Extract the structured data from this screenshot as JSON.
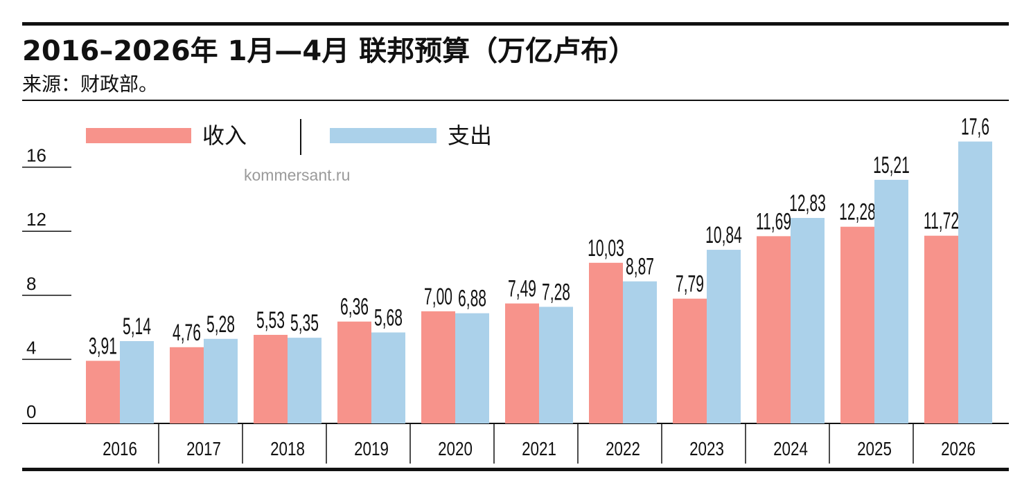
{
  "header": {
    "title": "2016–2026年 1月—4月 联邦预算（万亿卢布）",
    "source": "来源：财政部。"
  },
  "watermark": "kommersant.ru",
  "legend": [
    {
      "label": "收入",
      "color": "#f7938b"
    },
    {
      "label": "支出",
      "color": "#abd1ea"
    }
  ],
  "chart_data": {
    "type": "bar",
    "title": "2016–2026年 1月—4月 联邦预算（万亿卢布）",
    "categories": [
      "2016",
      "2017",
      "2018",
      "2019",
      "2020",
      "2021",
      "2022",
      "2023",
      "2024",
      "2025",
      "2026"
    ],
    "series": [
      {
        "name": "收入",
        "color": "#f7938b",
        "values": [
          3.91,
          4.76,
          5.53,
          6.36,
          7.0,
          7.49,
          10.03,
          7.79,
          11.69,
          12.28,
          11.72
        ],
        "labels": [
          "3,91",
          "4,76",
          "5,53",
          "6,36",
          "7,00",
          "7,49",
          "10,03",
          "7,79",
          "11,69",
          "12,28",
          "11,72"
        ]
      },
      {
        "name": "支出",
        "color": "#abd1ea",
        "values": [
          5.14,
          5.28,
          5.35,
          5.68,
          6.88,
          7.28,
          8.87,
          10.84,
          12.83,
          15.21,
          17.6
        ],
        "labels": [
          "5,14",
          "5,28",
          "5,35",
          "5,68",
          "6,88",
          "7,28",
          "8,87",
          "10,84",
          "12,83",
          "15,21",
          "17,6"
        ]
      }
    ],
    "yticks": [
      "0",
      "4",
      "8",
      "12",
      "16"
    ],
    "ylim": [
      0,
      18
    ],
    "grid": false,
    "legend_position": "top-left"
  }
}
